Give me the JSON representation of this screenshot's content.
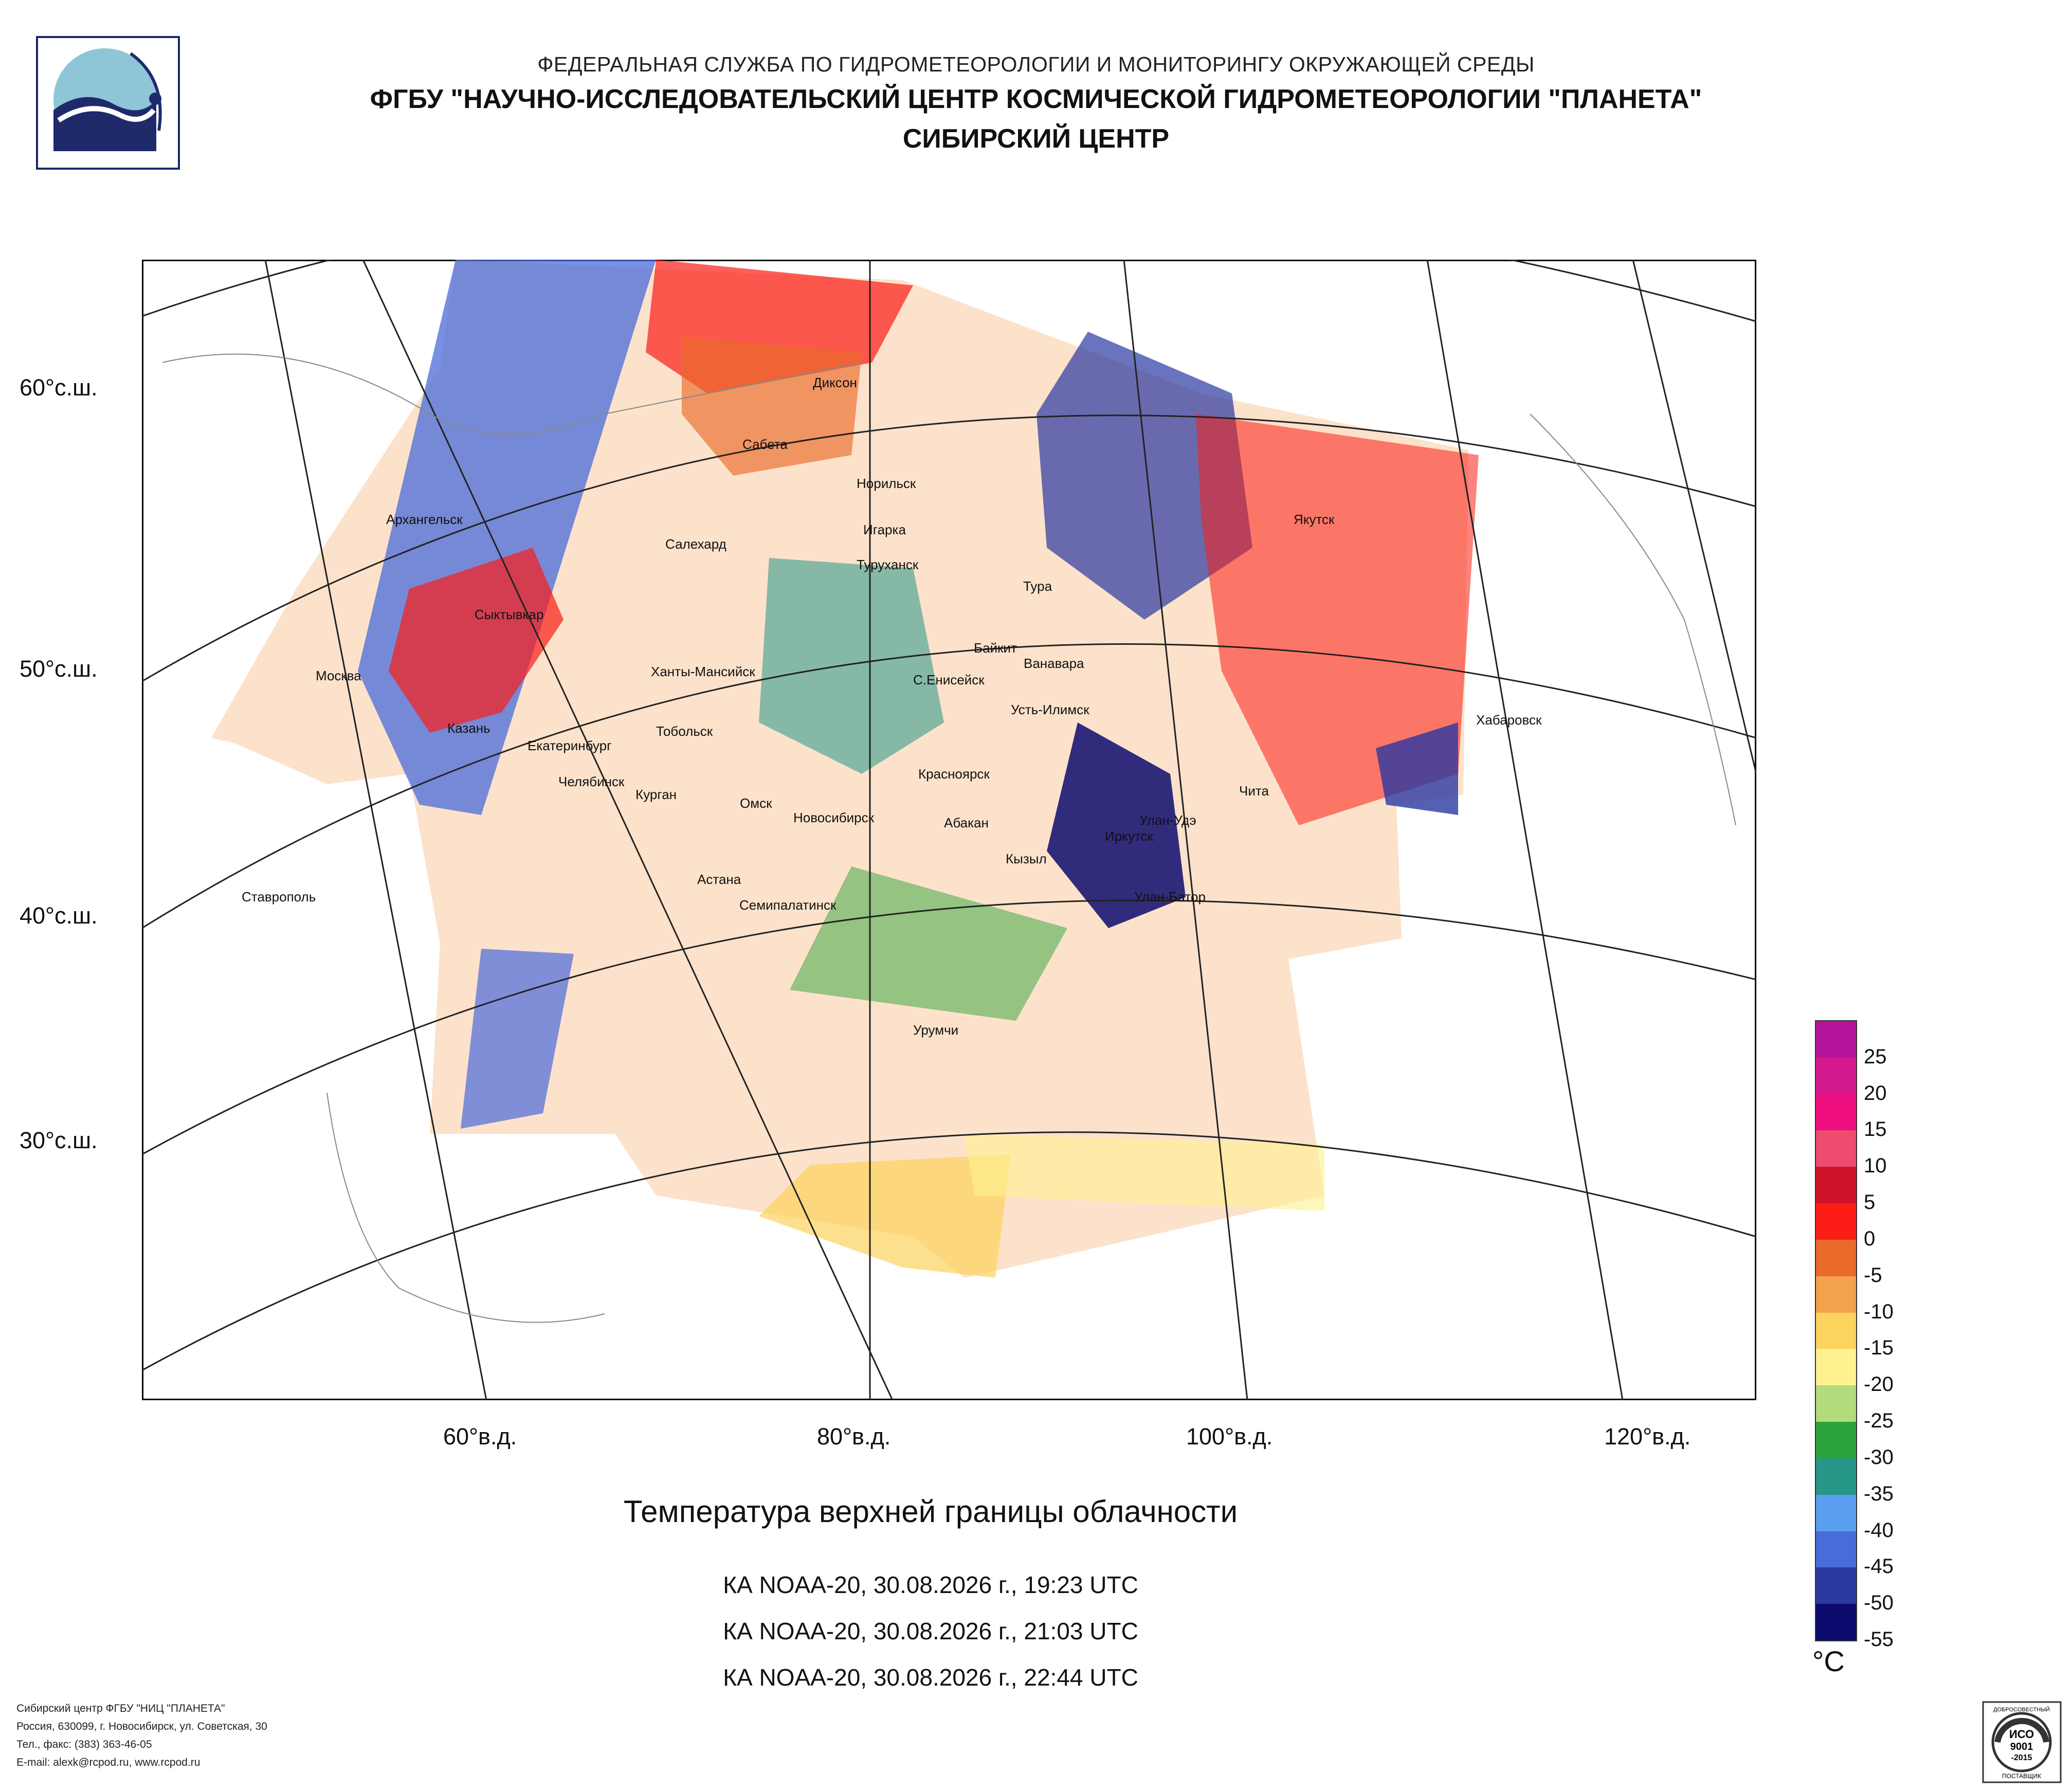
{
  "header": {
    "line1": "ФЕДЕРАЛЬНАЯ СЛУЖБА ПО ГИДРОМЕТЕОРОЛОГИИ И МОНИТОРИНГУ ОКРУЖАЮЩЕЙ СРЕДЫ",
    "line2": "ФГБУ \"НАУЧНО-ИССЛЕДОВАТЕЛЬСКИЙ ЦЕНТР КОСМИЧЕСКОЙ ГИДРОМЕТЕОРОЛОГИИ \"ПЛАНЕТА\"",
    "line3": "СИБИРСКИЙ ЦЕНТР"
  },
  "map": {
    "lat_labels": [
      "60°с.ш.",
      "50°с.ш.",
      "40°с.ш.",
      "30°с.ш."
    ],
    "lon_labels": [
      "60°в.д.",
      "80°в.д.",
      "100°в.д.",
      "120°в.д."
    ],
    "cities": [
      "Диксон",
      "Сабета",
      "Норильск",
      "Игарка",
      "Туруханск",
      "Тура",
      "Якутск",
      "Архангельск",
      "Салехард",
      "Сыктывкар",
      "Москва",
      "Ханты-Мансийск",
      "Байкит",
      "Ванавара",
      "С.Енисейск",
      "Усть-Илимск",
      "Казань",
      "Екатеринбург",
      "Тобольск",
      "Челябинск",
      "Курган",
      "Омск",
      "Новосибирск",
      "Красноярск",
      "Абакан",
      "Иркутск",
      "Улан-Удэ",
      "Чита",
      "Хабаровск",
      "Кызыл",
      "Улан-Батор",
      "Ставрополь",
      "Астана",
      "Семипалатинск",
      "Урумчи"
    ]
  },
  "title": "Температура верхней границы облачности",
  "passes": [
    "КА NOAA-20, 30.08.2026 г., 19:23 UTC",
    "КА NOAA-20, 30.08.2026 г., 21:03 UTC",
    "КА NOAA-20, 30.08.2026 г., 22:44 UTC"
  ],
  "legend": {
    "unit": "°C",
    "labels": [
      "25",
      "20",
      "15",
      "10",
      "5",
      "0",
      "-5",
      "-10",
      "-15",
      "-20",
      "-25",
      "-30",
      "-35",
      "-40",
      "-45",
      "-50",
      "-55"
    ],
    "colors": [
      "#b5139a",
      "#d41a8e",
      "#ef0f80",
      "#ee4a72",
      "#d01228",
      "#fb1d16",
      "#ea6a2a",
      "#f3a24b",
      "#fcd35d",
      "#fdf190",
      "#b2dc7b",
      "#2ca33a",
      "#259688",
      "#5a9ef0",
      "#4a6bda",
      "#2b38a1",
      "#0d0a6e"
    ]
  },
  "footer": {
    "line1": "Сибирский центр ФГБУ \"НИЦ \"ПЛАНЕТА\"",
    "line2": "Россия, 630099, г. Новосибирск, ул. Советская, 30",
    "line3": "Тел., факс: (383) 363-46-05",
    "line4": "E-mail: alexk@rcpod.ru, www.rcpod.ru"
  },
  "cert": {
    "top": "ДОБРОСОВЕСТНЫЙ",
    "mid1": "ИСО",
    "mid2": "9001",
    "mid3": "-2015",
    "bottom": "ПОСТАВЩИК"
  }
}
